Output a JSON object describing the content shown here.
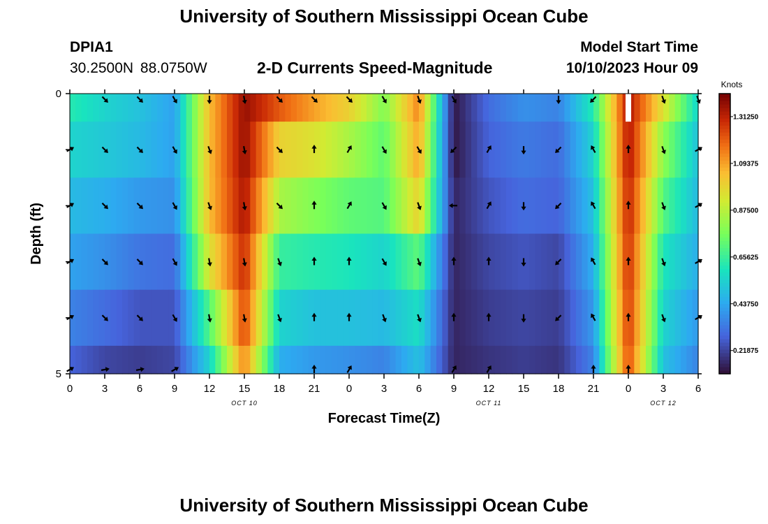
{
  "header": {
    "title": "University of Southern Mississippi Ocean Cube",
    "station_id": "DPIA1",
    "station_location": "30.2500N  88.0750W",
    "subtitle": "2-D Currents Speed-Magnitude",
    "model_start_label": "Model Start Time",
    "model_start_value": "10/10/2023 Hour 09"
  },
  "footer": {
    "title": "University of Southern Mississippi Ocean Cube"
  },
  "chart_data": {
    "type": "heatmap",
    "title": "2-D Currents Speed-Magnitude",
    "xlabel": "Forecast Time(Z)",
    "ylabel": "Depth (ft)",
    "x_ticks": [
      "0",
      "3",
      "6",
      "9",
      "12",
      "15",
      "18",
      "21",
      "0",
      "3",
      "6",
      "9",
      "12",
      "15",
      "18",
      "21",
      "0",
      "3",
      "6"
    ],
    "date_labels": [
      {
        "text": "OCT 10",
        "at_tick": 5
      },
      {
        "text": "OCT 11",
        "at_tick": 12
      },
      {
        "text": "OCT 12",
        "at_tick": 17
      }
    ],
    "y_ticks": [
      {
        "value": 0,
        "label": "0"
      },
      {
        "value": 5,
        "label": "5"
      }
    ],
    "ylim": [
      0,
      5
    ],
    "colorbar": {
      "label": "Knots",
      "ticks": [
        "0.21875",
        "0.43750",
        "0.65625",
        "0.87500",
        "1.09375",
        "1.31250"
      ],
      "range": [
        0.11,
        1.42
      ]
    },
    "time_steps_hours": [
      0,
      3,
      6,
      9,
      12,
      15,
      18,
      21,
      24,
      27,
      30,
      33,
      36,
      39,
      42,
      45,
      48,
      51,
      54
    ],
    "depth_rows": [
      "0-0.5 ft",
      "0.5-1.5 ft",
      "1.5-2.5 ft",
      "2.5-3.5 ft",
      "3.5-4.5 ft",
      "4.5-5 ft"
    ],
    "speed_knots": [
      [
        0.62,
        0.55,
        0.5,
        0.42,
        1.05,
        1.38,
        1.22,
        1.1,
        1.0,
        0.78,
        1.15,
        0.12,
        0.3,
        0.38,
        0.35,
        0.62,
        1.35,
        0.95,
        0.55
      ],
      [
        0.55,
        0.52,
        0.48,
        0.42,
        1.05,
        1.38,
        1.0,
        0.95,
        0.85,
        0.72,
        1.1,
        0.12,
        0.28,
        0.33,
        0.3,
        0.55,
        1.35,
        0.8,
        0.5
      ],
      [
        0.48,
        0.45,
        0.4,
        0.38,
        1.05,
        1.35,
        0.85,
        0.78,
        0.72,
        0.7,
        1.0,
        0.15,
        0.25,
        0.3,
        0.28,
        0.5,
        1.32,
        0.7,
        0.48
      ],
      [
        0.42,
        0.38,
        0.32,
        0.3,
        0.95,
        1.3,
        0.65,
        0.62,
        0.6,
        0.55,
        0.72,
        0.15,
        0.22,
        0.25,
        0.22,
        0.45,
        1.3,
        0.6,
        0.45
      ],
      [
        0.35,
        0.3,
        0.25,
        0.25,
        0.7,
        1.25,
        0.55,
        0.5,
        0.5,
        0.48,
        0.58,
        0.15,
        0.2,
        0.22,
        0.2,
        0.4,
        1.28,
        0.55,
        0.4
      ],
      [
        0.28,
        0.22,
        0.2,
        0.22,
        0.55,
        1.15,
        0.45,
        0.4,
        0.38,
        0.35,
        0.5,
        0.15,
        0.18,
        0.2,
        0.18,
        0.35,
        1.25,
        0.5,
        0.35
      ]
    ],
    "direction_deg": [
      [
        null,
        135,
        135,
        150,
        180,
        170,
        135,
        135,
        135,
        150,
        160,
        150,
        null,
        null,
        180,
        225,
        null,
        160,
        160
      ],
      [
        60,
        135,
        135,
        150,
        160,
        170,
        135,
        0,
        30,
        150,
        150,
        225,
        30,
        180,
        225,
        330,
        0,
        160,
        60
      ],
      [
        60,
        135,
        135,
        150,
        160,
        170,
        135,
        0,
        30,
        150,
        160,
        270,
        30,
        180,
        225,
        330,
        0,
        160,
        60
      ],
      [
        60,
        135,
        135,
        150,
        170,
        170,
        160,
        0,
        0,
        150,
        160,
        0,
        0,
        180,
        225,
        330,
        0,
        160,
        60
      ],
      [
        60,
        135,
        135,
        150,
        170,
        170,
        160,
        0,
        0,
        160,
        160,
        0,
        0,
        180,
        225,
        330,
        0,
        160,
        60
      ],
      [
        60,
        80,
        80,
        60,
        null,
        null,
        null,
        0,
        30,
        null,
        null,
        30,
        30,
        null,
        null,
        0,
        0,
        null,
        null
      ]
    ]
  }
}
